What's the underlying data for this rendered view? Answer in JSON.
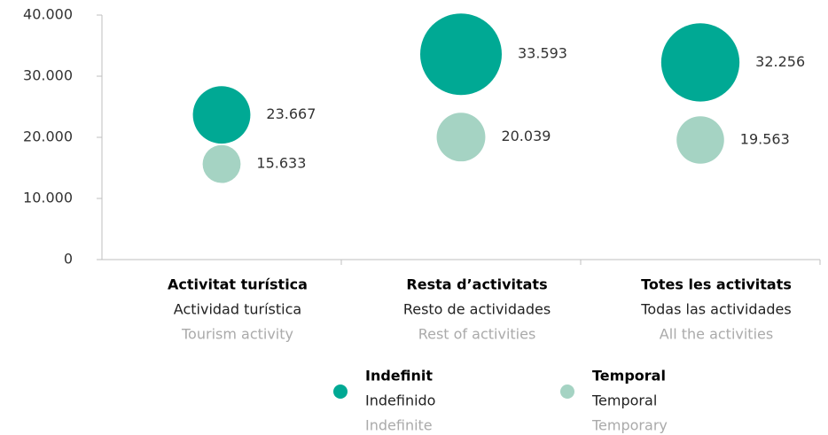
{
  "chart_data": {
    "type": "bubble",
    "categories": [
      [
        "Activitat turística",
        "Actividad turística",
        "Tourism activity"
      ],
      [
        "Resta d’activitats",
        "Resto de actividades",
        "Rest of activities"
      ],
      [
        "Totes les activitats",
        "Todas las actividades",
        "All the activities"
      ]
    ],
    "series": [
      {
        "name": [
          "Indefinit",
          "Indefinido",
          "Indefinite"
        ],
        "color": "#00a994",
        "values": [
          23667,
          33593,
          32256
        ],
        "value_labels": [
          "23.667",
          "33.593",
          "32.256"
        ]
      },
      {
        "name": [
          "Temporal",
          "Temporal",
          "Temporary"
        ],
        "color": "#a5d3c3",
        "values": [
          15633,
          20039,
          19563
        ],
        "value_labels": [
          "15.633",
          "20.039",
          "19.563"
        ]
      }
    ],
    "ylim": [
      0,
      40000
    ],
    "yticks": [
      0,
      {
        "value": 10000,
        "label": "10.000"
      },
      {
        "value": 20000,
        "label": "20.000"
      },
      {
        "value": 30000,
        "label": "30.000"
      },
      {
        "value": 40000,
        "label": "40.000"
      }
    ],
    "grid": false
  }
}
